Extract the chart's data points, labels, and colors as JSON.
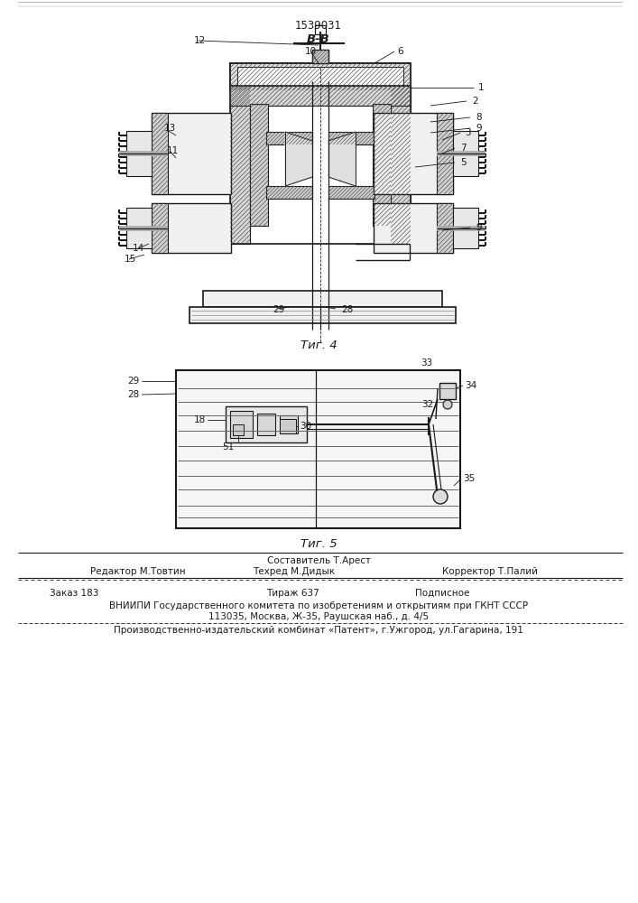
{
  "patent_number": "1539031",
  "section_label": "В-В",
  "fig4_label": "Τиг. 4",
  "fig5_label": "Τиг. 5",
  "bg_color": "#ffffff",
  "line_color": "#1a1a1a",
  "hatch_color": "#333333",
  "footer": {
    "sostavitel": "Составитель Т.Арест",
    "redaktor": "Редактор М.Товтин",
    "tehred": "Техред М.Дидык",
    "korrektor": "Корректор Т.Палий",
    "zakaz": "Заказ 183",
    "tirazh": "Тираж 637",
    "podpisnoe": "Подписное",
    "vniipи": "ВНИИПИ Государственного комитета по изобретениям и открытиям при ГКНТ СССР",
    "address": "113035, Москва, Ж-35, Раушская наб., д. 4/5",
    "proizv": "Производственно-издательский комбинат «Патент», г.Ужгород, ул.Гагарина, 191"
  }
}
